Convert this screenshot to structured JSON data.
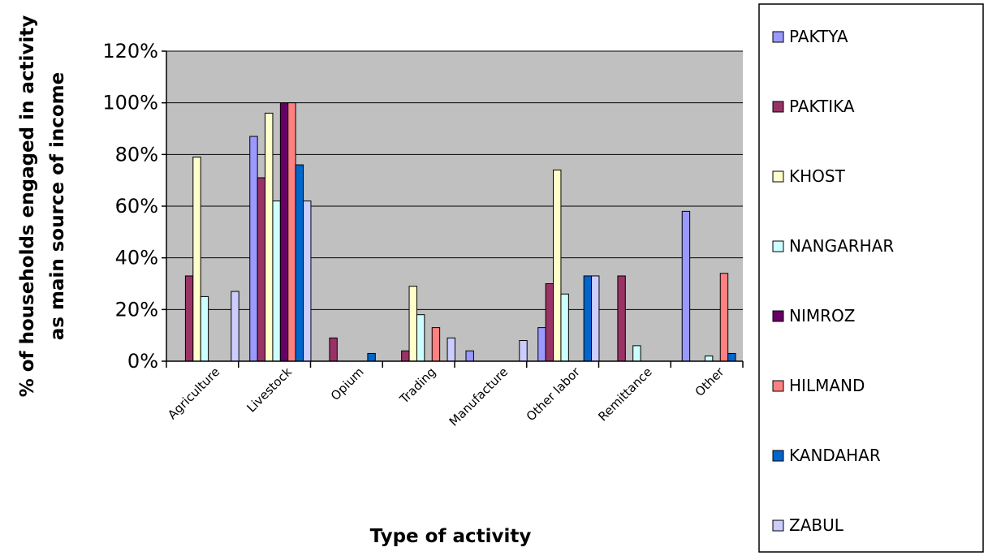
{
  "chart_data": {
    "type": "bar",
    "xlabel": "Type of activity",
    "ylabel_lines": [
      "% of households engaged in activity",
      "as main source of income"
    ],
    "ylim": [
      0,
      120
    ],
    "yticks": [
      "0%",
      "20%",
      "40%",
      "60%",
      "80%",
      "100%",
      "120%"
    ],
    "grid": true,
    "legend_position": "right",
    "categories": [
      "Agriculture",
      "Livestock",
      "Opium",
      "Trading",
      "Manufacture",
      "Other labor",
      "Remittance",
      "Other"
    ],
    "series": [
      {
        "name": "PAKTYA",
        "color": "#9999ff",
        "values": [
          0,
          87,
          0,
          0,
          4,
          13,
          0,
          58
        ]
      },
      {
        "name": "PAKTIKA",
        "color": "#993366",
        "values": [
          33,
          71,
          9,
          4,
          0,
          30,
          33,
          0
        ]
      },
      {
        "name": "KHOST",
        "color": "#ffffcc",
        "values": [
          79,
          96,
          0,
          29,
          0,
          74,
          0,
          0
        ]
      },
      {
        "name": "NANGARHAR",
        "color": "#ccffff",
        "values": [
          25,
          62,
          0,
          18,
          0,
          26,
          6,
          2
        ]
      },
      {
        "name": "NIMROZ",
        "color": "#660066",
        "values": [
          0,
          100,
          0,
          0,
          0,
          0,
          0,
          0
        ]
      },
      {
        "name": "HILMAND",
        "color": "#ff8080",
        "values": [
          0,
          100,
          0,
          13,
          0,
          0,
          0,
          34
        ]
      },
      {
        "name": "KANDAHAR",
        "color": "#0066cc",
        "values": [
          0,
          76,
          3,
          0,
          0,
          33,
          0,
          3
        ]
      },
      {
        "name": "ZABUL",
        "color": "#ccccff",
        "values": [
          27,
          62,
          0,
          9,
          8,
          33,
          0,
          0
        ]
      }
    ]
  }
}
